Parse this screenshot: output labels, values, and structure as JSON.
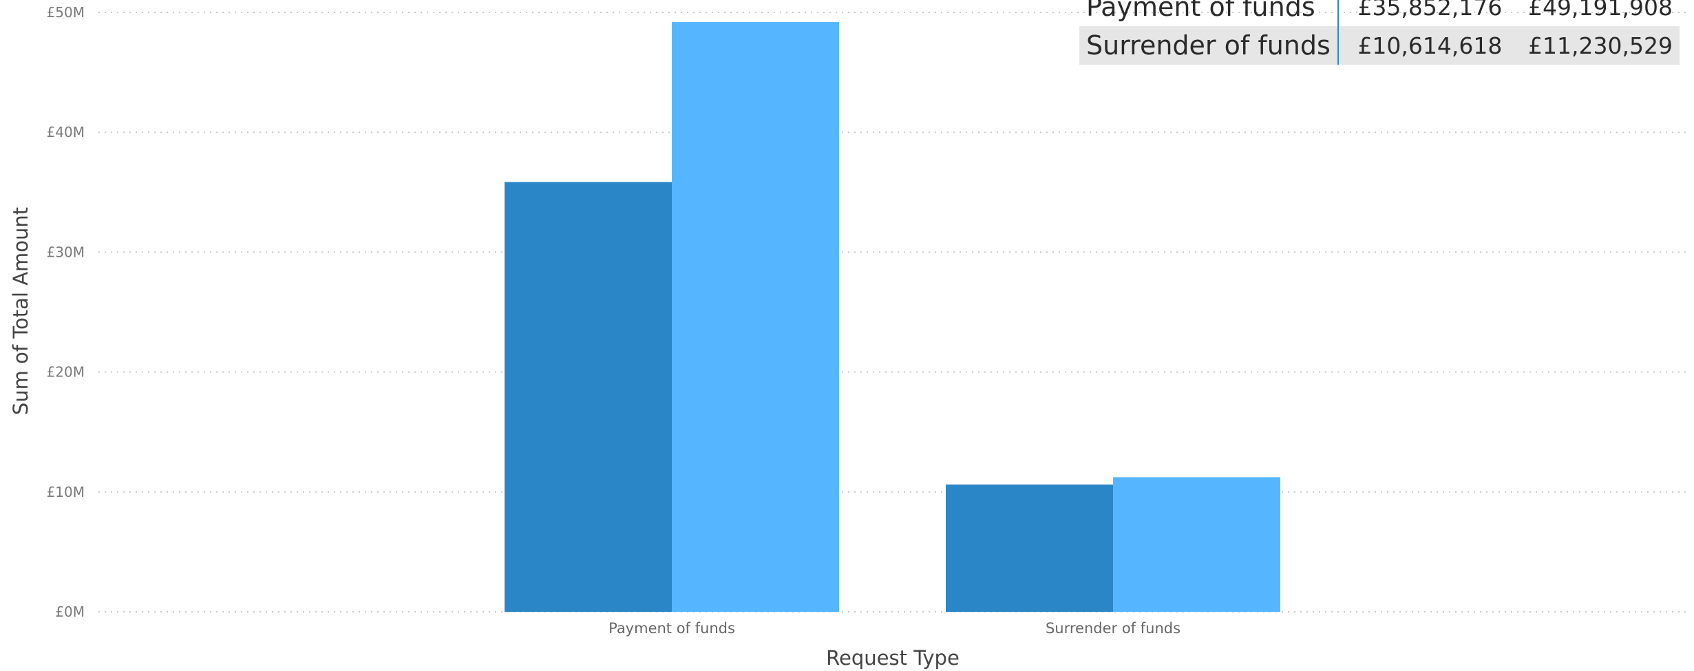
{
  "chart_data": {
    "type": "bar",
    "categories": [
      "Payment of funds",
      "Surrender of funds"
    ],
    "series": [
      {
        "values": [
          35852176,
          10614618
        ],
        "color": "#2b86c7"
      },
      {
        "values": [
          49191908,
          11230529
        ],
        "color": "#55b6ff"
      }
    ],
    "xlabel": "Request Type",
    "ylabel": "Sum of Total Amount",
    "ylim": [
      0,
      50000000
    ],
    "y_ticks": [
      {
        "value": 0,
        "label": "£0M"
      },
      {
        "value": 10000000,
        "label": "£10M"
      },
      {
        "value": 20000000,
        "label": "£20M"
      },
      {
        "value": 30000000,
        "label": "£30M"
      },
      {
        "value": 40000000,
        "label": "£40M"
      },
      {
        "value": 50000000,
        "label": "£50M"
      }
    ],
    "grid": true,
    "legend": "none"
  },
  "table": {
    "rows": [
      {
        "name": "Payment of funds",
        "v1": "£35,852,176",
        "v2": "£49,191,908"
      },
      {
        "name": "Surrender of funds",
        "v1": "£10,614,618",
        "v2": "£11,230,529"
      }
    ]
  }
}
